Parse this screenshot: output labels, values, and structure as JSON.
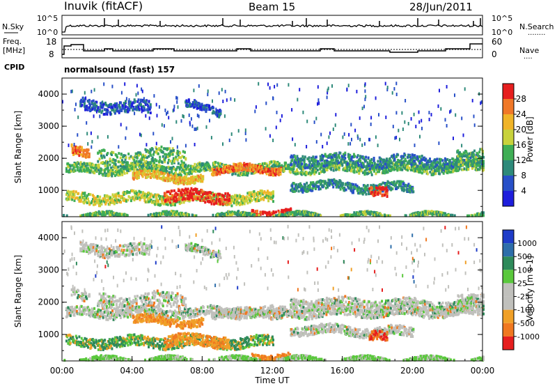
{
  "header": {
    "station": "Inuvik (fitACF)",
    "beam": "Beam 15",
    "date": "28/Jun/2011"
  },
  "nsky_panel": {
    "left_label": "N.Sky",
    "left_ticks": [
      "10^5",
      "10^0"
    ],
    "right_ticks": [
      "10^5",
      "10^0"
    ],
    "right_label": "N.Search",
    "right_marker": "........"
  },
  "freq_panel": {
    "left_label_top": "Freq.",
    "left_label_bottom": "[MHz]",
    "left_ticks": [
      "18",
      "8"
    ],
    "right_ticks": [
      "60",
      "0"
    ],
    "right_label": "Nave",
    "right_marker": "....",
    "cpid_label": "CPID",
    "cpid_value": "normalsound (fast) 157"
  },
  "chart_data": [
    {
      "type": "heatmap",
      "title": "",
      "xlabel": "",
      "ylabel": "Slant Range [km]",
      "xlim": [
        0,
        24
      ],
      "ylim": [
        180,
        4500
      ],
      "y_ticks": [
        "1000",
        "2000",
        "3000",
        "4000"
      ],
      "colorbar": {
        "label": "Power [dB]",
        "ticks": [
          "4",
          "8",
          "12",
          "16",
          "20",
          "24",
          "28"
        ],
        "colors": [
          "#1e1edc",
          "#2850c8",
          "#2e8a7a",
          "#3fae55",
          "#c8d23c",
          "#f0b428",
          "#f07828",
          "#e61e1e"
        ]
      }
    },
    {
      "type": "heatmap",
      "title": "",
      "xlabel": "Time UT",
      "ylabel": "Slant Range [km]",
      "xlim": [
        0,
        24
      ],
      "ylim": [
        180,
        4500
      ],
      "x_ticks": [
        "00:00",
        "04:00",
        "08:00",
        "12:00",
        "16:00",
        "20:00",
        "00:00"
      ],
      "y_ticks": [
        "1000",
        "2000",
        "3000",
        "4000"
      ],
      "colorbar": {
        "label": "Velocity [m s-1]",
        "ticks": [
          "1000",
          "500",
          "100",
          "25",
          "-25",
          "-100",
          "-500",
          "-1000"
        ],
        "colors": [
          "#1e3cc8",
          "#2e6eaa",
          "#2e8a5a",
          "#5ac83c",
          "#c0c0bc",
          "#c0c0bc",
          "#f0a028",
          "#f07820",
          "#e61e1e"
        ]
      }
    }
  ]
}
